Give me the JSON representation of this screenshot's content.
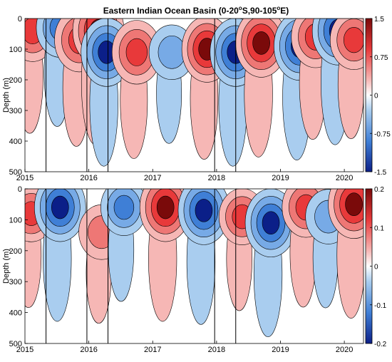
{
  "title": {
    "main": "Eastern Indian Ocean Basin (0-20",
    "sup1": "o",
    "mid": "S,90-105",
    "sup2": "o",
    "end": "E)"
  },
  "colors": {
    "positive_max": "#7a0a0a",
    "positive_mid": "#e8393a",
    "positive_low": "#f6b7b5",
    "neutral": "#ffffff",
    "negative_low": "#a9cdef",
    "negative_mid": "#3f7fd6",
    "negative_max": "#0b1f88",
    "contour_line": "#000000",
    "event_line": "#000000"
  },
  "chart_data": [
    {
      "type": "heatmap",
      "panel": "top",
      "title": "Eastern Indian Ocean Basin (0-20°S,90-105°E)",
      "xlabel": "",
      "ylabel": "Depth (m)",
      "x_unit": "year",
      "xlim": [
        2015.0,
        2020.3
      ],
      "ylim": [
        500,
        0
      ],
      "x_ticks": [
        2015,
        2016,
        2017,
        2018,
        2019,
        2020
      ],
      "y_ticks": [
        0,
        100,
        200,
        300,
        400,
        500
      ],
      "colorbar": {
        "range": [
          -1.5,
          1.5
        ],
        "ticks": [
          -1.5,
          -0.75,
          0,
          0.75,
          1.5
        ],
        "tick_labels": [
          "-1.5",
          "-0.75",
          "0",
          "0.75",
          "1.5"
        ]
      },
      "event_lines_x": [
        2015.33,
        2015.97,
        2016.3,
        2017.97,
        2018.3
      ],
      "features": [
        {
          "sign": "positive",
          "x_center": 2015.12,
          "depth_center": 40,
          "peak": 1.2
        },
        {
          "sign": "negative",
          "x_center": 2015.55,
          "depth_center": 30,
          "peak": -1.1
        },
        {
          "sign": "positive",
          "x_center": 2015.85,
          "depth_center": 70,
          "peak": 1.3
        },
        {
          "sign": "positive",
          "x_center": 2016.15,
          "depth_center": 40,
          "peak": 1.5
        },
        {
          "sign": "negative",
          "x_center": 2016.28,
          "depth_center": 110,
          "peak": -1.5
        },
        {
          "sign": "positive",
          "x_center": 2016.75,
          "depth_center": 110,
          "peak": 1.3
        },
        {
          "sign": "negative",
          "x_center": 2017.3,
          "depth_center": 110,
          "peak": -0.9
        },
        {
          "sign": "positive",
          "x_center": 2017.85,
          "depth_center": 100,
          "peak": 1.4
        },
        {
          "sign": "negative",
          "x_center": 2018.3,
          "depth_center": 110,
          "peak": -1.5
        },
        {
          "sign": "positive",
          "x_center": 2018.7,
          "depth_center": 80,
          "peak": 1.5
        },
        {
          "sign": "negative",
          "x_center": 2019.3,
          "depth_center": 90,
          "peak": -1.5
        },
        {
          "sign": "positive",
          "x_center": 2019.55,
          "depth_center": 60,
          "peak": 1.2
        },
        {
          "sign": "negative",
          "x_center": 2019.9,
          "depth_center": 40,
          "peak": -1.5
        },
        {
          "sign": "positive",
          "x_center": 2020.15,
          "depth_center": 70,
          "peak": 1.1
        }
      ]
    },
    {
      "type": "heatmap",
      "panel": "bottom",
      "xlabel": "",
      "ylabel": "Depth (m)",
      "x_unit": "year",
      "xlim": [
        2015.0,
        2020.3
      ],
      "ylim": [
        500,
        0
      ],
      "x_ticks": [
        2015,
        2016,
        2017,
        2018,
        2019,
        2020
      ],
      "y_ticks": [
        0,
        100,
        200,
        300,
        400,
        500
      ],
      "colorbar": {
        "range": [
          -0.2,
          0.2
        ],
        "ticks": [
          -0.2,
          -0.1,
          0,
          0.1,
          0.2
        ],
        "tick_labels": [
          "-0.2",
          "-0.1",
          "0",
          "0.1",
          "0.2"
        ]
      },
      "event_lines_x": [
        2015.33,
        2015.97,
        2016.3,
        2017.97,
        2018.3
      ],
      "features": [
        {
          "sign": "positive",
          "x_center": 2015.1,
          "depth_center": 80,
          "peak": 0.13
        },
        {
          "sign": "negative",
          "x_center": 2015.55,
          "depth_center": 60,
          "peak": -0.2
        },
        {
          "sign": "positive",
          "x_center": 2016.2,
          "depth_center": 140,
          "peak": 0.12
        },
        {
          "sign": "negative",
          "x_center": 2016.55,
          "depth_center": 60,
          "peak": -0.13
        },
        {
          "sign": "positive",
          "x_center": 2017.2,
          "depth_center": 60,
          "peak": 0.2
        },
        {
          "sign": "negative",
          "x_center": 2017.8,
          "depth_center": 70,
          "peak": -0.2
        },
        {
          "sign": "positive",
          "x_center": 2018.4,
          "depth_center": 90,
          "peak": 0.13
        },
        {
          "sign": "negative",
          "x_center": 2018.85,
          "depth_center": 110,
          "peak": -0.2
        },
        {
          "sign": "positive",
          "x_center": 2019.4,
          "depth_center": 60,
          "peak": 0.15
        },
        {
          "sign": "negative",
          "x_center": 2019.75,
          "depth_center": 90,
          "peak": -0.12
        },
        {
          "sign": "positive",
          "x_center": 2020.15,
          "depth_center": 50,
          "peak": 0.2
        }
      ]
    }
  ]
}
